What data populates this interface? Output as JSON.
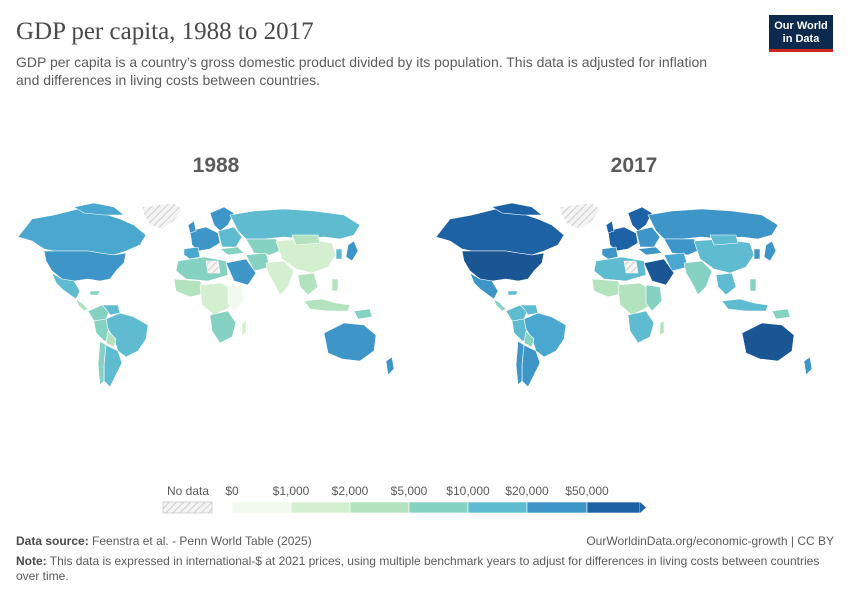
{
  "header": {
    "title": "GDP per capita, 1988 to 2017",
    "subtitle": "GDP per capita is a country’s gross domestic product divided by its population. This data is adjusted for inflation and differences in living costs between countries.",
    "logo_line1": "Our World",
    "logo_line2": "in Data"
  },
  "maps": [
    {
      "year": "1988"
    },
    {
      "year": "2017"
    }
  ],
  "legend": {
    "no_data_label": "No data",
    "bins": [
      {
        "label": "$0",
        "color": "#f2f9ee"
      },
      {
        "label": "$1,000",
        "color": "#d4efcf"
      },
      {
        "label": "$2,000",
        "color": "#b3e3be"
      },
      {
        "label": "$5,000",
        "color": "#85d2c3"
      },
      {
        "label": "$10,000",
        "color": "#5fbbcf"
      },
      {
        "label": "$20,000",
        "color": "#3d95c8"
      },
      {
        "label": "$50,000",
        "color": "#1e62a6"
      }
    ]
  },
  "footer": {
    "source_label": "Data source:",
    "source_text": "Feenstra et al. - Penn World Table (2025)",
    "right_text": "OurWorldinData.org/economic-growth | CC BY",
    "note_label": "Note:",
    "note_text": "This data is expressed in international-$ at 2021 prices, using multiple benchmark years to adjust for differences in living costs between countries over time."
  }
}
